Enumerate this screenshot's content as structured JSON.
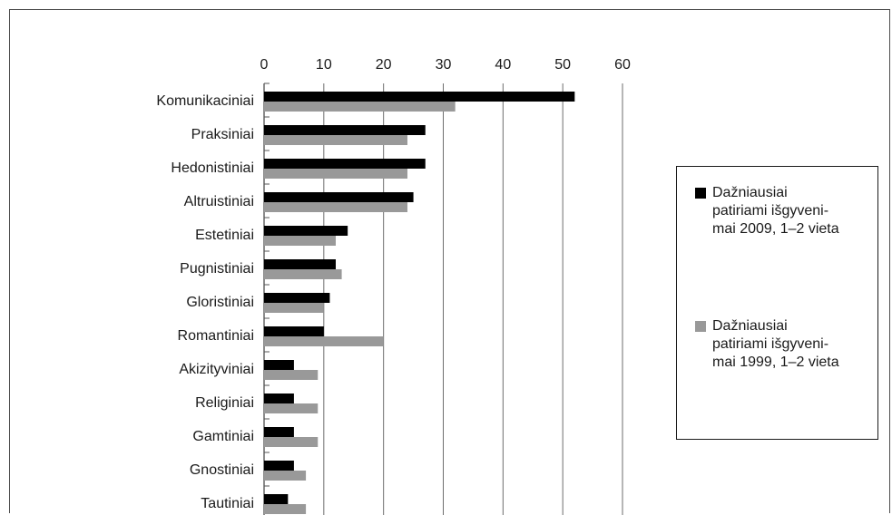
{
  "chart_data": {
    "type": "bar",
    "orientation": "horizontal",
    "title": "",
    "xlabel": "",
    "ylabel": "",
    "xlim": [
      0,
      60
    ],
    "ticks": [
      "0",
      "10",
      "20",
      "30",
      "40",
      "50",
      "60"
    ],
    "grid": "vertical",
    "legend_position": "right",
    "categories": [
      "Komunikaciniai",
      "Praksiniai",
      "Hedonistiniai",
      "Altruistiniai",
      "Estetiniai",
      "Pugnistiniai",
      "Gloristiniai",
      "Romantiniai",
      "Akizityviniai",
      "Religiniai",
      "Gamtiniai",
      "Gnostiniai",
      "Tautiniai"
    ],
    "series": [
      {
        "name": "Dažniausiai patiriami išgyvenimai 2009, 1–2 vieta",
        "label_lines": [
          "Dažniausiai",
          "patiriami išgyveni-",
          "mai 2009, 1–2 vieta"
        ],
        "color": "#000000",
        "values": [
          52,
          27,
          27,
          25,
          14,
          12,
          11,
          10,
          5,
          5,
          5,
          5,
          4
        ]
      },
      {
        "name": "Dažniausiai patiriami išgyvenimai 1999, 1–2 vieta",
        "label_lines": [
          "Dažniausiai",
          "patiriami išgyveni-",
          "mai 1999, 1–2 vieta"
        ],
        "color": "#999999",
        "values": [
          32,
          24,
          24,
          24,
          12,
          13,
          10,
          20,
          9,
          9,
          9,
          7,
          7
        ]
      }
    ]
  }
}
